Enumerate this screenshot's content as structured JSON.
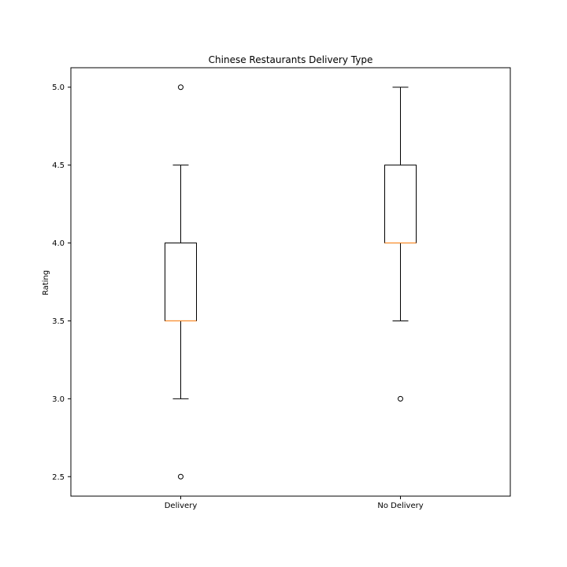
{
  "chart_data": {
    "type": "box",
    "title": "Chinese Restaurants Delivery Type",
    "xlabel": "",
    "ylabel": "Rating",
    "ylim": [
      2.375,
      5.125
    ],
    "yticks": [
      "2.5",
      "3.0",
      "3.5",
      "4.0",
      "4.5",
      "5.0"
    ],
    "grid": false,
    "categories": [
      "Delivery",
      "No Delivery"
    ],
    "boxes": [
      {
        "whisker_low": 3.0,
        "q1": 3.5,
        "median": 3.5,
        "q3": 4.0,
        "whisker_high": 4.5,
        "outliers": [
          5.0,
          2.5
        ]
      },
      {
        "whisker_low": 3.5,
        "q1": 4.0,
        "median": 4.0,
        "q3": 4.5,
        "whisker_high": 5.0,
        "outliers": [
          3.0
        ]
      }
    ],
    "colors": {
      "box": "#000000",
      "median": "#ff7f0e",
      "outlier": "#000000"
    }
  }
}
